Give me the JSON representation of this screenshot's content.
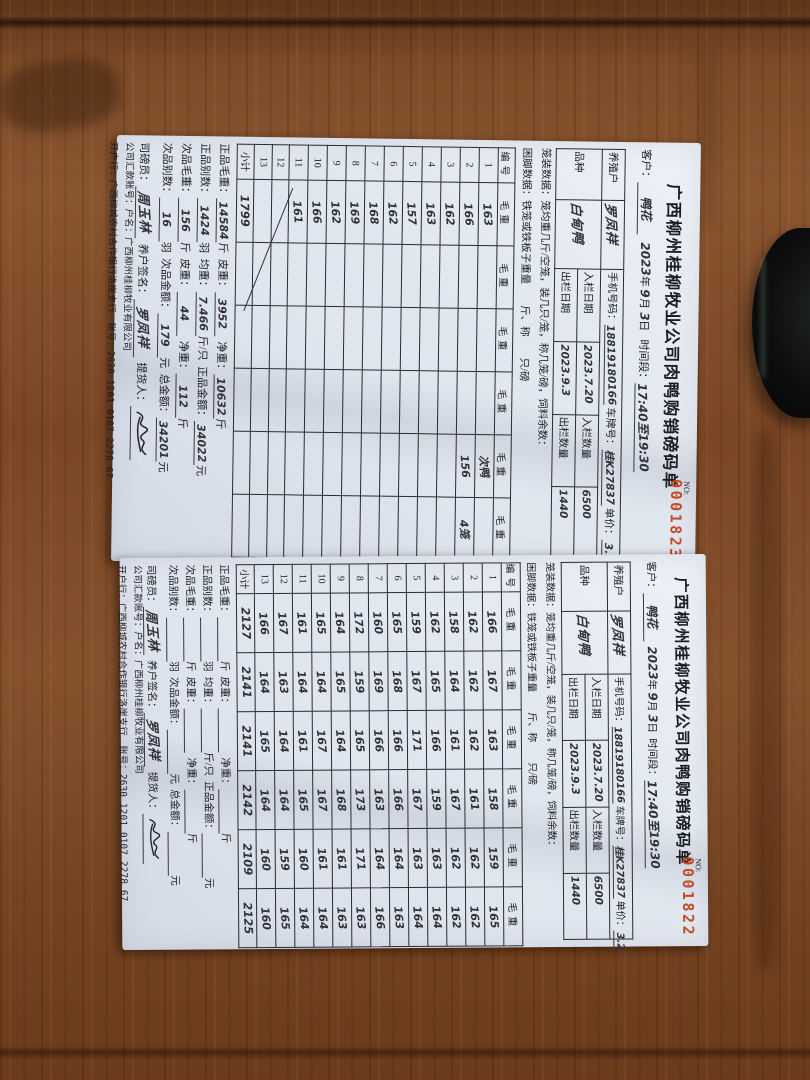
{
  "colors": {
    "serial_red": "#c44a28",
    "paper": "#e6ebf2",
    "wood": "#7a4624"
  },
  "labels": {
    "title": "广西柳州桂柳牧业公司肉鸭购销磅码单",
    "no": "NO:",
    "customer": "客户：",
    "year": "年",
    "month": "月",
    "day": "日",
    "timeslot": "时间段：",
    "farmer": "养殖户",
    "phone": "手机号码：",
    "plate": "车牌号：",
    "unit_price": "单价：",
    "breed": "品种",
    "in_date": "入栏日期",
    "in_qty": "入栏数量",
    "out_date": "出栏日期",
    "out_qty": "出栏数量",
    "cage_line": "笼装数据：笼均重几斤/空笼，装几只/笼，称几笼/磅，饲料余数：",
    "leg_line": "困脚数据：铁笼或铁板子重量　　斤、称　　只/磅",
    "col_no": "编号",
    "col_weight": "毛重",
    "subtotal": "小计",
    "good_gross": "正品毛重：",
    "jin": "斤",
    "tare": "皮重：",
    "net": "净重：",
    "good_count": "正品别数：",
    "yu": "羽",
    "avg_weight": "均重：",
    "jin_per_bird": "斤/只",
    "good_amount": "正品金额：",
    "yuan": "元",
    "sub_gross": "次品毛重：",
    "sub_count": "次品别数：",
    "sub_amount": "次品金额：",
    "total_amount": "总金额：",
    "weigher": "司磅员：",
    "farmer_sign": "养户签名：",
    "pickup": "提货人：",
    "remit_line": "公司汇款账号：户名：广西柳州桂柳牧业有限公司",
    "bank_line": "开户行：广西柳城农村合作银行洛崖支行　账号：",
    "bank_account": "2630 1201 0107 2278 67"
  },
  "doc1": {
    "serial": "0001823",
    "customer_hw": "鸭花",
    "year_hw": "2023",
    "month_hw": "9",
    "day_hw": "3",
    "timeslot_hw": "17:40至19:30",
    "farmer_hw": "罗凤祥",
    "phone_hw": "18819180166",
    "plate_hw": "桂K27837",
    "price_hw": "3.2",
    "breed_hw": "白甸鸭",
    "in_date_hw": "2023.7.20",
    "in_qty_hw": "6500",
    "out_date_hw": "2023.9.3",
    "out_qty_hw": "1440",
    "table": {
      "rows": [
        {
          "no": "1",
          "values": [
            "163",
            "",
            "",
            "",
            "次鸭",
            ""
          ]
        },
        {
          "no": "2",
          "values": [
            "166",
            "",
            "",
            "",
            "156",
            "4笼"
          ]
        },
        {
          "no": "3",
          "values": [
            "162",
            "",
            "",
            "",
            "",
            ""
          ]
        },
        {
          "no": "4",
          "values": [
            "163",
            "",
            "",
            "",
            "",
            ""
          ]
        },
        {
          "no": "5",
          "values": [
            "157",
            "",
            "",
            "",
            "",
            ""
          ]
        },
        {
          "no": "6",
          "values": [
            "162",
            "",
            "",
            "",
            "",
            ""
          ]
        },
        {
          "no": "7",
          "values": [
            "168",
            "",
            "",
            "",
            "",
            ""
          ]
        },
        {
          "no": "8",
          "values": [
            "169",
            "",
            "",
            "",
            "",
            ""
          ]
        },
        {
          "no": "9",
          "values": [
            "162",
            "",
            "",
            "",
            "",
            ""
          ]
        },
        {
          "no": "10",
          "values": [
            "166",
            "",
            "",
            "",
            "",
            ""
          ]
        },
        {
          "no": "11",
          "values": [
            "161",
            "",
            "",
            "",
            "",
            ""
          ]
        },
        {
          "no": "12",
          "values": [
            "",
            "",
            "",
            "",
            "",
            ""
          ]
        },
        {
          "no": "13",
          "values": [
            "",
            "",
            "",
            "",
            "",
            ""
          ]
        }
      ],
      "subtotals": [
        "1799",
        "",
        "",
        "",
        "",
        ""
      ]
    },
    "good_gross_hw": "14584",
    "tare_hw": "3952",
    "net_hw": "10632",
    "good_count_hw": "1424",
    "avg_hw": "7.466",
    "good_amount_hw": "34022",
    "sub_gross_hw": "156",
    "sub_tare_hw": "44",
    "sub_net_hw": "112",
    "sub_count_hw": "16",
    "sub_amount_hw": "179",
    "total_amount_hw": "34201",
    "weigher_hw": "周玉林",
    "farmer_sign_hw": "罗凤祥"
  },
  "doc2": {
    "serial": "0001822",
    "customer_hw": "鸭花",
    "year_hw": "2023",
    "month_hw": "9",
    "day_hw": "3",
    "timeslot_hw": "17:40至19:30",
    "farmer_hw": "罗凤祥",
    "phone_hw": "18819180166",
    "plate_hw": "桂K27837",
    "price_hw": "3.2",
    "breed_hw": "白甸鸭",
    "in_date_hw": "2023.7.20",
    "in_qty_hw": "6500",
    "out_date_hw": "2023.9.3",
    "out_qty_hw": "1440",
    "table": {
      "rows": [
        {
          "no": "1",
          "values": [
            "166",
            "167",
            "163",
            "158",
            "159",
            "165"
          ]
        },
        {
          "no": "2",
          "values": [
            "162",
            "162",
            "162",
            "161",
            "162",
            "162"
          ]
        },
        {
          "no": "3",
          "values": [
            "158",
            "164",
            "161",
            "167",
            "162",
            "162"
          ]
        },
        {
          "no": "4",
          "values": [
            "162",
            "165",
            "166",
            "159",
            "163",
            "164"
          ]
        },
        {
          "no": "5",
          "values": [
            "159",
            "167",
            "171",
            "167",
            "163",
            "164"
          ]
        },
        {
          "no": "6",
          "values": [
            "165",
            "168",
            "166",
            "166",
            "164",
            "163"
          ]
        },
        {
          "no": "7",
          "values": [
            "160",
            "169",
            "166",
            "163",
            "164",
            "166"
          ]
        },
        {
          "no": "8",
          "values": [
            "172",
            "159",
            "165",
            "173",
            "171",
            "163"
          ]
        },
        {
          "no": "9",
          "values": [
            "164",
            "165",
            "164",
            "168",
            "161",
            "163"
          ]
        },
        {
          "no": "10",
          "values": [
            "165",
            "164",
            "167",
            "167",
            "161",
            "164"
          ]
        },
        {
          "no": "11",
          "values": [
            "161",
            "164",
            "161",
            "165",
            "160",
            "164"
          ]
        },
        {
          "no": "12",
          "values": [
            "167",
            "163",
            "164",
            "164",
            "159",
            "165"
          ]
        },
        {
          "no": "13",
          "values": [
            "166",
            "164",
            "165",
            "164",
            "160",
            "160"
          ]
        }
      ],
      "subtotals": [
        "2127",
        "2141",
        "2141",
        "2142",
        "2109",
        "2125"
      ]
    },
    "good_gross_hw": "",
    "tare_hw": "",
    "net_hw": "",
    "good_count_hw": "",
    "avg_hw": "",
    "good_amount_hw": "",
    "sub_gross_hw": "",
    "sub_tare_hw": "",
    "sub_net_hw": "",
    "sub_count_hw": "",
    "sub_amount_hw": "",
    "total_amount_hw": "",
    "weigher_hw": "周玉林",
    "farmer_sign_hw": "罗凤祥"
  }
}
